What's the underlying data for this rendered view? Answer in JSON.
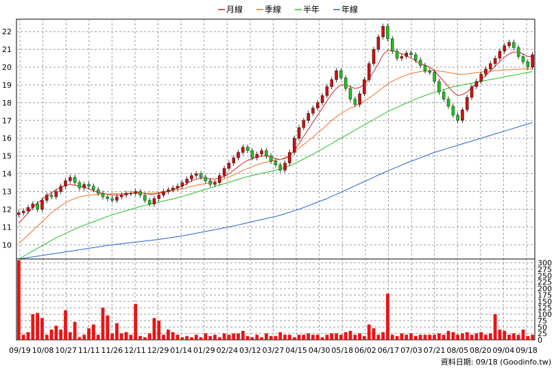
{
  "chart_data": {
    "type": "candlestick",
    "legend": [
      {
        "name": "月線",
        "color": "#d02020"
      },
      {
        "name": "季線",
        "color": "#f07020"
      },
      {
        "name": "半年",
        "color": "#20c020"
      },
      {
        "name": "年線",
        "color": "#2060d0"
      }
    ],
    "price_axis": {
      "ticks": [
        10,
        11,
        12,
        13,
        14,
        15,
        16,
        17,
        18,
        19,
        20,
        21,
        22
      ],
      "ylim": [
        9.2,
        22.7
      ]
    },
    "volume_axis": {
      "ticks": [
        0,
        25,
        50,
        75,
        100,
        125,
        150,
        175,
        200,
        225,
        250,
        275,
        300
      ],
      "ylim": [
        0,
        315
      ]
    },
    "x_labels": [
      "09/19",
      "10/08",
      "10/27",
      "11/11",
      "11/26",
      "12/11",
      "12/29",
      "01/14",
      "01/29",
      "02/24",
      "03/12",
      "03/27",
      "04/15",
      "04/30",
      "05/18",
      "06/02",
      "06/17",
      "07/03",
      "07/21",
      "08/05",
      "08/20",
      "09/04",
      "09/18"
    ],
    "footer": "資料日期: 09/18  (Goodinfo.tw)",
    "close": [
      11.8,
      11.9,
      12.1,
      12.3,
      12.0,
      12.5,
      12.8,
      12.7,
      13.0,
      13.3,
      13.6,
      13.8,
      13.5,
      13.2,
      13.4,
      13.3,
      13.1,
      12.9,
      12.7,
      12.6,
      12.5,
      12.7,
      12.8,
      12.9,
      12.9,
      13.0,
      12.8,
      12.5,
      12.3,
      12.6,
      12.8,
      13.0,
      13.1,
      13.2,
      13.3,
      13.5,
      13.7,
      13.9,
      14.0,
      13.8,
      13.6,
      13.4,
      13.5,
      13.9,
      14.3,
      14.6,
      14.9,
      15.2,
      15.5,
      15.3,
      14.9,
      15.1,
      15.3,
      15.0,
      14.7,
      14.5,
      14.2,
      14.6,
      15.2,
      16.0,
      16.6,
      17.0,
      17.4,
      17.7,
      18.0,
      18.4,
      18.9,
      19.3,
      19.8,
      19.4,
      18.8,
      18.2,
      17.9,
      18.5,
      19.3,
      20.2,
      21.0,
      21.7,
      22.3,
      21.6,
      20.9,
      20.5,
      20.6,
      20.8,
      20.7,
      20.4,
      20.1,
      19.8,
      19.7,
      19.2,
      18.6,
      18.2,
      17.8,
      17.3,
      17.0,
      17.6,
      18.3,
      18.9,
      19.2,
      19.6,
      19.9,
      20.2,
      20.5,
      20.9,
      21.2,
      21.4,
      21.1,
      20.6,
      20.3,
      20.0,
      20.7
    ],
    "volume": [
      310,
      20,
      30,
      100,
      105,
      85,
      20,
      40,
      55,
      40,
      115,
      30,
      70,
      10,
      20,
      45,
      60,
      20,
      125,
      95,
      25,
      65,
      25,
      30,
      20,
      140,
      15,
      10,
      25,
      85,
      75,
      20,
      40,
      30,
      20,
      10,
      15,
      10,
      20,
      10,
      25,
      15,
      20,
      10,
      25,
      20,
      25,
      25,
      35,
      15,
      10,
      20,
      10,
      25,
      15,
      15,
      30,
      20,
      20,
      10,
      20,
      20,
      25,
      20,
      20,
      10,
      20,
      25,
      25,
      20,
      30,
      35,
      20,
      25,
      15,
      60,
      45,
      20,
      30,
      180,
      20,
      15,
      25,
      20,
      25,
      15,
      20,
      20,
      20,
      20,
      25,
      20,
      35,
      30,
      20,
      25,
      30,
      20,
      25,
      30,
      20,
      25,
      100,
      40,
      35,
      20,
      25,
      20,
      40,
      15,
      20
    ],
    "ma_month": [
      11.2,
      11.5,
      11.8,
      12.1,
      12.35,
      12.55,
      12.75,
      12.95,
      13.1,
      13.25,
      13.35,
      13.4,
      13.35,
      13.3,
      13.25,
      13.15,
      13.05,
      12.95,
      12.9,
      12.85,
      12.8,
      12.8,
      12.8,
      12.85,
      12.9,
      12.95,
      12.95,
      12.9,
      12.85,
      12.85,
      12.9,
      12.95,
      13.0,
      13.1,
      13.2,
      13.3,
      13.45,
      13.6,
      13.7,
      13.75,
      13.75,
      13.7,
      13.7,
      13.75,
      13.85,
      14.0,
      14.2,
      14.4,
      14.6,
      14.75,
      14.85,
      14.95,
      15.0,
      15.0,
      14.95,
      14.85,
      14.8,
      14.85,
      15.0,
      15.3,
      15.7,
      16.1,
      16.5,
      16.9,
      17.3,
      17.7,
      18.1,
      18.5,
      18.8,
      19.0,
      19.0,
      18.9,
      18.8,
      18.85,
      19.05,
      19.35,
      19.75,
      20.2,
      20.7,
      20.95,
      20.95,
      20.85,
      20.75,
      20.65,
      20.5,
      20.35,
      20.2,
      20.1,
      20.0,
      19.8,
      19.5,
      19.2,
      18.9,
      18.6,
      18.4,
      18.45,
      18.6,
      18.85,
      19.05,
      19.3,
      19.55,
      19.8,
      20.05,
      20.3,
      20.55,
      20.75,
      20.85,
      20.85,
      20.75,
      20.6,
      20.6
    ],
    "ma_quarter": [
      10.1,
      10.3,
      10.55,
      10.8,
      11.05,
      11.3,
      11.55,
      11.8,
      12.0,
      12.2,
      12.35,
      12.5,
      12.6,
      12.7,
      12.75,
      12.8,
      12.82,
      12.84,
      12.85,
      12.86,
      12.87,
      12.88,
      12.88,
      12.89,
      12.9,
      12.9,
      12.9,
      12.9,
      12.9,
      12.92,
      12.95,
      12.98,
      13.0,
      13.05,
      13.1,
      13.15,
      13.2,
      13.3,
      13.35,
      13.4,
      13.45,
      13.5,
      13.55,
      13.6,
      13.7,
      13.8,
      13.95,
      14.05,
      14.2,
      14.3,
      14.4,
      14.5,
      14.6,
      14.65,
      14.7,
      14.75,
      14.8,
      14.9,
      15.05,
      15.25,
      15.45,
      15.65,
      15.85,
      16.05,
      16.3,
      16.5,
      16.75,
      17.0,
      17.2,
      17.4,
      17.55,
      17.7,
      17.8,
      17.95,
      18.1,
      18.25,
      18.45,
      18.65,
      18.85,
      19.05,
      19.2,
      19.35,
      19.45,
      19.55,
      19.65,
      19.7,
      19.75,
      19.78,
      19.8,
      19.8,
      19.78,
      19.75,
      19.7,
      19.65,
      19.6,
      19.6,
      19.62,
      19.65,
      19.7,
      19.72,
      19.75,
      19.78,
      19.8,
      19.82,
      19.85,
      19.85,
      19.88,
      19.88,
      19.9,
      19.9,
      19.9
    ],
    "ma_half": [
      9.2,
      9.35,
      9.5,
      9.65,
      9.8,
      9.95,
      10.1,
      10.25,
      10.4,
      10.52,
      10.64,
      10.76,
      10.88,
      11.0,
      11.1,
      11.2,
      11.3,
      11.4,
      11.5,
      11.6,
      11.68,
      11.76,
      11.84,
      11.92,
      12.0,
      12.08,
      12.15,
      12.22,
      12.28,
      12.34,
      12.4,
      12.46,
      12.52,
      12.58,
      12.65,
      12.72,
      12.8,
      12.88,
      12.96,
      13.04,
      13.12,
      13.2,
      13.28,
      13.36,
      13.44,
      13.52,
      13.6,
      13.68,
      13.76,
      13.84,
      13.9,
      13.96,
      14.02,
      14.08,
      14.14,
      14.2,
      14.27,
      14.35,
      14.45,
      14.57,
      14.7,
      14.83,
      14.97,
      15.1,
      15.25,
      15.4,
      15.55,
      15.7,
      15.85,
      16.0,
      16.15,
      16.3,
      16.45,
      16.6,
      16.75,
      16.9,
      17.05,
      17.2,
      17.35,
      17.5,
      17.62,
      17.74,
      17.86,
      17.98,
      18.1,
      18.2,
      18.3,
      18.4,
      18.5,
      18.58,
      18.66,
      18.74,
      18.82,
      18.9,
      18.95,
      19.0,
      19.05,
      19.1,
      19.15,
      19.2,
      19.25,
      19.3,
      19.35,
      19.4,
      19.45,
      19.5,
      19.55,
      19.6,
      19.65,
      19.7,
      19.75
    ],
    "ma_year": [
      9.2,
      9.24,
      9.28,
      9.32,
      9.36,
      9.4,
      9.44,
      9.48,
      9.52,
      9.56,
      9.6,
      9.64,
      9.68,
      9.72,
      9.76,
      9.8,
      9.84,
      9.88,
      9.92,
      9.96,
      10.0,
      10.03,
      10.06,
      10.09,
      10.12,
      10.15,
      10.18,
      10.21,
      10.24,
      10.27,
      10.3,
      10.34,
      10.38,
      10.42,
      10.46,
      10.5,
      10.55,
      10.6,
      10.65,
      10.7,
      10.75,
      10.8,
      10.85,
      10.9,
      10.95,
      11.0,
      11.06,
      11.12,
      11.18,
      11.24,
      11.3,
      11.36,
      11.42,
      11.48,
      11.54,
      11.6,
      11.67,
      11.75,
      11.83,
      11.92,
      12.0,
      12.1,
      12.2,
      12.3,
      12.4,
      12.5,
      12.6,
      12.72,
      12.84,
      12.96,
      13.08,
      13.2,
      13.32,
      13.44,
      13.56,
      13.68,
      13.8,
      13.92,
      14.04,
      14.16,
      14.27,
      14.38,
      14.49,
      14.6,
      14.7,
      14.8,
      14.9,
      15.0,
      15.1,
      15.2,
      15.28,
      15.36,
      15.44,
      15.52,
      15.6,
      15.68,
      15.76,
      15.84,
      15.92,
      16.0,
      16.08,
      16.16,
      16.24,
      16.32,
      16.4,
      16.48,
      16.56,
      16.64,
      16.72,
      16.8,
      16.88
    ]
  }
}
